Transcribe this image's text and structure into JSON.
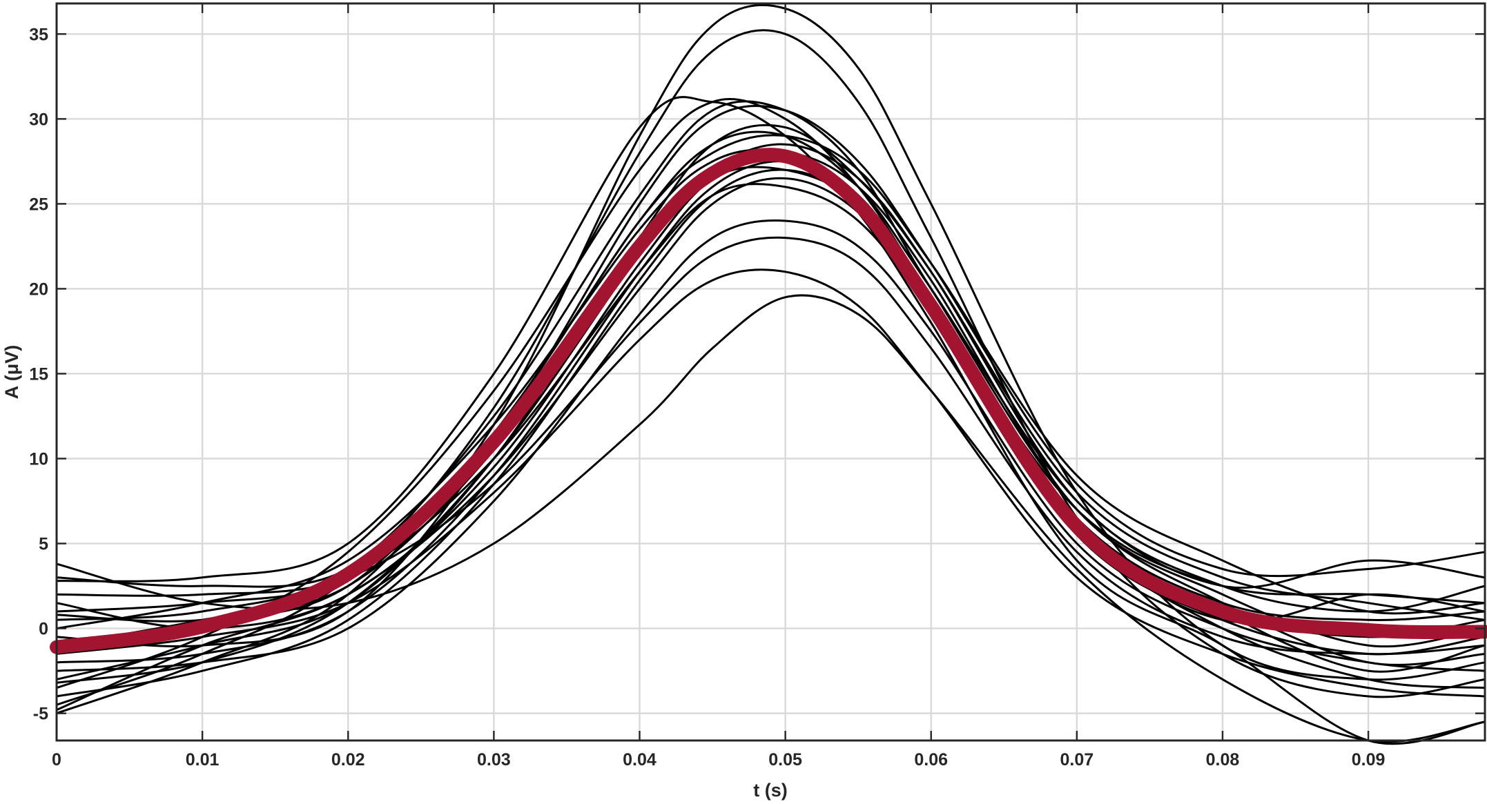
{
  "colors": {
    "trials": "#000000",
    "mean": "#A2142F",
    "axes": "#262626",
    "grid": "#d9d9d9"
  },
  "chart_data": {
    "type": "line",
    "title": "",
    "xlabel": "t (s)",
    "ylabel": "A (μV)",
    "xlim": [
      0,
      0.098
    ],
    "ylim": [
      -6.6,
      36.8
    ],
    "grid": true,
    "legend": "none",
    "x_ticks": [
      {
        "value": 0,
        "label": "0"
      },
      {
        "value": 0.01,
        "label": "0.01"
      },
      {
        "value": 0.02,
        "label": "0.02"
      },
      {
        "value": 0.03,
        "label": "0.03"
      },
      {
        "value": 0.04,
        "label": "0.04"
      },
      {
        "value": 0.05,
        "label": "0.05"
      },
      {
        "value": 0.06,
        "label": "0.06"
      },
      {
        "value": 0.07,
        "label": "0.07"
      },
      {
        "value": 0.08,
        "label": "0.08"
      },
      {
        "value": 0.09,
        "label": "0.09"
      }
    ],
    "y_ticks": [
      {
        "value": -5,
        "label": "-5"
      },
      {
        "value": 0,
        "label": "0"
      },
      {
        "value": 5,
        "label": "5"
      },
      {
        "value": 10,
        "label": "10"
      },
      {
        "value": 15,
        "label": "15"
      },
      {
        "value": 20,
        "label": "20"
      },
      {
        "value": 25,
        "label": "25"
      },
      {
        "value": 30,
        "label": "30"
      },
      {
        "value": 35,
        "label": "35"
      }
    ],
    "x": [
      0,
      0.01,
      0.02,
      0.03,
      0.04,
      0.045,
      0.05,
      0.055,
      0.06,
      0.07,
      0.08,
      0.09,
      0.098
    ],
    "series": [
      {
        "role": "mean",
        "values": [
          -1.1,
          0.1,
          3.2,
          11.0,
          22.5,
          26.8,
          27.8,
          25.0,
          19.0,
          6.0,
          1.0,
          -0.1,
          -0.2
        ]
      },
      {
        "role": "trial",
        "values": [
          -5.0,
          -2.0,
          2.0,
          12.0,
          29.0,
          35.5,
          36.5,
          33.0,
          25.0,
          8.0,
          -1.0,
          -3.0,
          -2.0
        ]
      },
      {
        "role": "trial",
        "values": [
          -4.5,
          -1.5,
          3.0,
          13.0,
          28.0,
          34.0,
          35.0,
          31.0,
          23.0,
          6.5,
          -1.5,
          -4.0,
          -3.0
        ]
      },
      {
        "role": "trial",
        "values": [
          2.8,
          3.0,
          5.0,
          15.0,
          29.5,
          31.0,
          29.0,
          24.5,
          18.0,
          4.0,
          -1.0,
          -6.6,
          -5.5
        ]
      },
      {
        "role": "trial",
        "values": [
          -3.5,
          -0.5,
          4.5,
          14.0,
          27.0,
          31.0,
          30.0,
          26.0,
          19.5,
          6.0,
          0.5,
          2.0,
          1.0
        ]
      },
      {
        "role": "trial",
        "values": [
          0.5,
          1.0,
          3.5,
          12.5,
          25.5,
          30.5,
          30.5,
          27.0,
          20.0,
          7.0,
          1.5,
          -2.0,
          -1.5
        ]
      },
      {
        "role": "trial",
        "values": [
          -3.0,
          -1.0,
          1.5,
          10.0,
          23.0,
          28.5,
          29.5,
          26.5,
          21.0,
          8.0,
          3.0,
          1.5,
          0.5
        ]
      },
      {
        "role": "trial",
        "values": [
          3.0,
          2.5,
          3.5,
          11.5,
          24.0,
          28.0,
          29.0,
          27.0,
          21.5,
          9.0,
          4.0,
          1.0,
          1.5
        ]
      },
      {
        "role": "trial",
        "values": [
          -1.0,
          0.5,
          2.5,
          10.5,
          22.5,
          27.0,
          28.5,
          26.5,
          21.0,
          7.5,
          2.5,
          1.0,
          2.5
        ]
      },
      {
        "role": "trial",
        "values": [
          1.5,
          0.0,
          2.0,
          9.5,
          21.5,
          26.5,
          28.0,
          26.0,
          20.5,
          7.0,
          2.0,
          -1.0,
          0.0
        ]
      },
      {
        "role": "trial",
        "values": [
          -2.0,
          -1.5,
          1.0,
          9.0,
          21.0,
          26.0,
          27.5,
          25.5,
          19.5,
          6.5,
          1.0,
          -2.5,
          -1.0
        ]
      },
      {
        "role": "trial",
        "values": [
          0.0,
          1.5,
          4.0,
          12.0,
          23.5,
          27.5,
          28.0,
          25.5,
          19.5,
          6.0,
          0.0,
          -3.0,
          -3.5
        ]
      },
      {
        "role": "trial",
        "values": [
          -4.0,
          -2.5,
          0.5,
          8.5,
          20.5,
          25.5,
          27.0,
          25.0,
          19.0,
          6.5,
          1.5,
          0.5,
          1.0
        ]
      },
      {
        "role": "trial",
        "values": [
          -4.8,
          -1.0,
          2.0,
          9.0,
          20.0,
          25.0,
          26.5,
          24.5,
          19.0,
          7.0,
          2.5,
          2.0,
          1.5
        ]
      },
      {
        "role": "trial",
        "values": [
          1.0,
          1.5,
          3.0,
          10.0,
          21.0,
          25.5,
          26.0,
          24.0,
          18.5,
          5.5,
          0.5,
          -1.5,
          -0.5
        ]
      },
      {
        "role": "trial",
        "values": [
          -2.5,
          -2.0,
          0.0,
          7.5,
          18.5,
          23.0,
          24.0,
          22.5,
          17.5,
          5.0,
          0.0,
          -2.0,
          -2.5
        ]
      },
      {
        "role": "trial",
        "values": [
          2.0,
          2.0,
          3.0,
          8.5,
          18.0,
          22.0,
          23.0,
          21.5,
          16.5,
          4.5,
          -0.5,
          -1.5,
          -1.0
        ]
      },
      {
        "role": "trial",
        "values": [
          -1.5,
          -0.5,
          1.5,
          8.0,
          17.0,
          20.5,
          21.0,
          19.0,
          14.0,
          3.0,
          -1.5,
          -3.5,
          -4.0
        ]
      },
      {
        "role": "trial",
        "values": [
          3.8,
          1.5,
          1.5,
          5.0,
          12.0,
          16.5,
          19.5,
          18.5,
          14.0,
          3.5,
          -3.0,
          -6.6,
          -5.5
        ]
      },
      {
        "role": "trial",
        "values": [
          -0.5,
          -1.0,
          1.0,
          11.0,
          25.0,
          30.0,
          30.5,
          27.5,
          21.5,
          8.5,
          3.5,
          3.5,
          4.5
        ]
      },
      {
        "role": "trial",
        "values": [
          0.8,
          0.5,
          2.5,
          11.5,
          24.0,
          28.5,
          29.0,
          26.0,
          20.0,
          7.5,
          2.5,
          4.0,
          3.0
        ]
      },
      {
        "role": "trial",
        "values": [
          -3.2,
          -2.0,
          1.5,
          10.0,
          22.0,
          26.5,
          27.0,
          25.0,
          19.5,
          6.5,
          1.0,
          -0.5,
          0.5
        ]
      }
    ]
  }
}
